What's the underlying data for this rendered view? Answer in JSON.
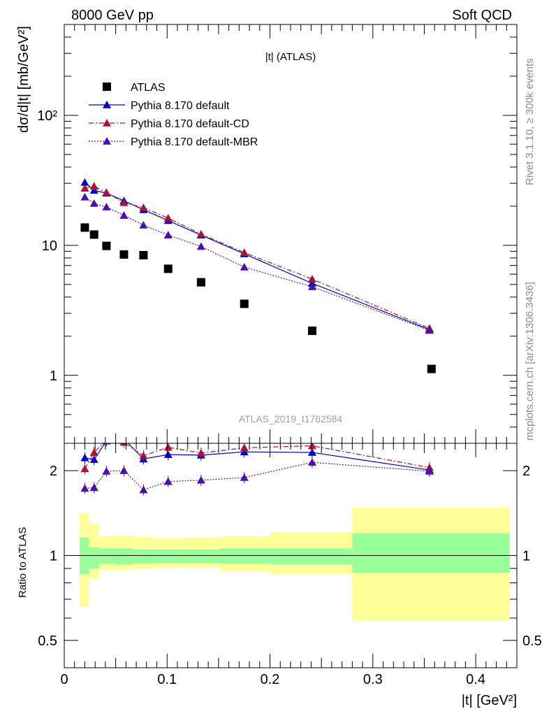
{
  "header": {
    "left_title": "8000 GeV pp",
    "right_title": "Soft QCD",
    "side_text_top": "Rivet 3.1.10, ≥ 300k events",
    "side_text_bottom": "mcplots.cern.ch [arXiv:1306.3436]",
    "watermark": "ATLAS_2019_I1762584"
  },
  "colors": {
    "data": "#000000",
    "default": "#0000cc",
    "default_cd": "#aa1133",
    "default_mbr": "#4b0fb0",
    "band_stat": "#99ff99",
    "band_total": "#ffff99"
  },
  "chart_data": [
    {
      "type": "scatter",
      "title": "|t| (ATLAS)",
      "ylabel": "dσ/d|t| [mb/GeV²]",
      "yscale": "log",
      "ylim": [
        0.3,
        500
      ],
      "xlim": [
        0,
        0.44
      ],
      "y_ticks": [
        "1",
        "10",
        "10²"
      ],
      "legend_placement": "top-left",
      "series": [
        {
          "name": "ATLAS",
          "marker": "square",
          "color_key": "data",
          "x": [
            0.02,
            0.029,
            0.041,
            0.058,
            0.077,
            0.101,
            0.133,
            0.175,
            0.241,
            0.357
          ],
          "values": [
            13.7,
            12.1,
            9.9,
            8.5,
            8.4,
            6.6,
            5.2,
            3.55,
            2.2,
            1.12
          ]
        },
        {
          "name": "Pythia 8.170 default",
          "marker": "triangle",
          "line": "solid",
          "color_key": "default",
          "x": [
            0.02,
            0.029,
            0.041,
            0.058,
            0.077,
            0.101,
            0.133,
            0.175,
            0.241,
            0.355
          ],
          "values": [
            30.5,
            26.5,
            25.2,
            22.0,
            18.8,
            15.5,
            12.0,
            8.6,
            5.1,
            2.25
          ]
        },
        {
          "name": "Pythia 8.170 default-CD",
          "marker": "triangle",
          "line": "dashdot",
          "color_key": "default_cd",
          "x": [
            0.02,
            0.029,
            0.041,
            0.058,
            0.077,
            0.101,
            0.133,
            0.175,
            0.241,
            0.355
          ],
          "values": [
            27.5,
            28.5,
            25.5,
            21.3,
            19.5,
            16.2,
            12.2,
            8.8,
            5.5,
            2.3
          ]
        },
        {
          "name": "Pythia 8.170 default-MBR",
          "marker": "triangle",
          "line": "dotted",
          "color_key": "default_mbr",
          "x": [
            0.02,
            0.029,
            0.041,
            0.058,
            0.077,
            0.101,
            0.133,
            0.175,
            0.241,
            0.355
          ],
          "values": [
            23.5,
            21.0,
            19.7,
            17.0,
            14.3,
            12.0,
            9.8,
            6.8,
            4.8,
            2.22
          ]
        }
      ]
    },
    {
      "type": "line",
      "ylabel": "Ratio to ATLAS",
      "xlabel": "|t| [GeV²]",
      "yscale": "log",
      "ylim": [
        0.4,
        2.5
      ],
      "xlim": [
        0,
        0.44
      ],
      "x_ticks": [
        "0",
        "0.1",
        "0.2",
        "0.3",
        "0.4"
      ],
      "y_ticks": [
        "0.5",
        "1",
        "2"
      ],
      "bands": {
        "edges": [
          0.015,
          0.024,
          0.034,
          0.05,
          0.067,
          0.087,
          0.116,
          0.152,
          0.2,
          0.28,
          0.433
        ],
        "stat_lo": [
          0.86,
          0.9,
          0.935,
          0.93,
          0.935,
          0.94,
          0.94,
          0.935,
          0.93,
          0.87
        ],
        "stat_hi": [
          1.16,
          1.07,
          1.06,
          1.06,
          1.05,
          1.05,
          1.05,
          1.06,
          1.06,
          1.2
        ],
        "total_lo": [
          0.66,
          0.83,
          0.89,
          0.885,
          0.9,
          0.905,
          0.905,
          0.88,
          0.86,
          0.59
        ],
        "total_hi": [
          1.42,
          1.3,
          1.17,
          1.175,
          1.165,
          1.15,
          1.16,
          1.17,
          1.21,
          1.48
        ]
      },
      "series": [
        {
          "name": "Pythia 8.170 default",
          "marker": "triangle",
          "line": "solid",
          "color_key": "default",
          "x": [
            0.02,
            0.029,
            0.041,
            0.058,
            0.077,
            0.101,
            0.133,
            0.175,
            0.241,
            0.355
          ],
          "values": [
            2.22,
            2.19,
            2.55,
            2.59,
            2.2,
            2.28,
            2.27,
            2.33,
            2.32,
            2.01
          ]
        },
        {
          "name": "Pythia 8.170 default-CD",
          "marker": "triangle",
          "line": "dashdot",
          "color_key": "default_cd",
          "x": [
            0.02,
            0.029,
            0.041,
            0.058,
            0.077,
            0.101,
            0.133,
            0.175,
            0.241,
            0.355
          ],
          "values": [
            2.03,
            2.32,
            2.57,
            2.52,
            2.26,
            2.42,
            2.31,
            2.41,
            2.45,
            2.05
          ]
        },
        {
          "name": "Pythia 8.170 default-MBR",
          "marker": "triangle",
          "line": "dotted",
          "color_key": "default_mbr",
          "x": [
            0.02,
            0.029,
            0.041,
            0.058,
            0.077,
            0.101,
            0.133,
            0.175,
            0.241,
            0.355
          ],
          "values": [
            1.73,
            1.74,
            1.99,
            2.0,
            1.71,
            1.83,
            1.85,
            1.89,
            2.14,
            1.99
          ]
        }
      ]
    }
  ]
}
